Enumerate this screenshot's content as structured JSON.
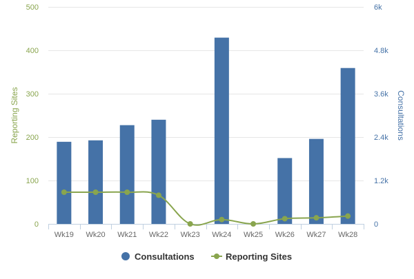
{
  "chart_data": {
    "type": "bar",
    "categories": [
      "Wk19",
      "Wk20",
      "Wk21",
      "Wk22",
      "Wk23",
      "Wk24",
      "Wk25",
      "Wk26",
      "Wk27",
      "Wk28"
    ],
    "series": [
      {
        "name": "Consultations",
        "type": "bar",
        "axis": "right",
        "color": "#4572A7",
        "values": [
          2270,
          2310,
          2730,
          2880,
          0,
          5150,
          0,
          1820,
          2350,
          4310
        ]
      },
      {
        "name": "Reporting Sites",
        "type": "line",
        "axis": "left",
        "color": "#89A54E",
        "values": [
          73,
          73,
          73,
          66,
          0,
          10,
          0,
          12,
          14,
          18
        ]
      }
    ],
    "y_left": {
      "label": "Reporting Sites",
      "range": [
        0,
        500
      ],
      "ticks": [
        0,
        100,
        200,
        300,
        400,
        500
      ],
      "tick_labels": [
        "0",
        "100",
        "200",
        "300",
        "400",
        "500"
      ],
      "color": "#89A54E"
    },
    "y_right": {
      "label": "Consultations",
      "range": [
        0,
        6000
      ],
      "ticks": [
        0,
        1200,
        2400,
        3600,
        4800,
        6000
      ],
      "tick_labels": [
        "0",
        "1.2k",
        "2.4k",
        "3.6k",
        "4.8k",
        "6k"
      ],
      "color": "#4572A7"
    },
    "grid": true,
    "legend": "bottom-center"
  }
}
